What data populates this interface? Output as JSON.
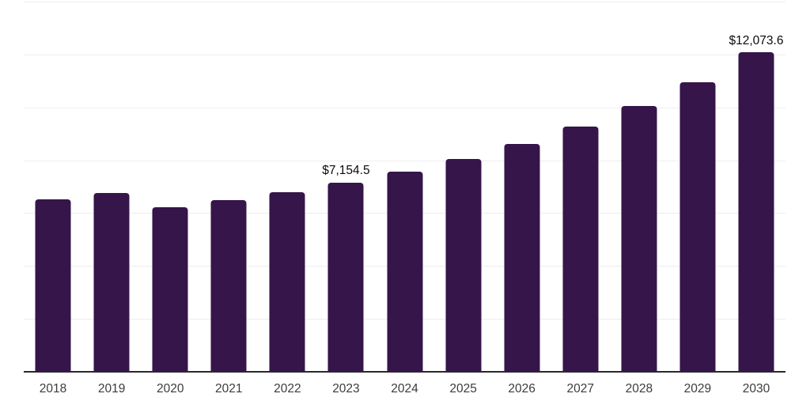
{
  "chart_data": {
    "type": "bar",
    "title": "",
    "xlabel": "",
    "ylabel": "",
    "categories": [
      "2018",
      "2019",
      "2020",
      "2021",
      "2022",
      "2023",
      "2024",
      "2025",
      "2026",
      "2027",
      "2028",
      "2029",
      "2030"
    ],
    "values": [
      6530,
      6760,
      6230,
      6480,
      6790,
      7154.5,
      7560,
      8060,
      8630,
      9270,
      10050,
      10960,
      12073.6
    ],
    "data_labels": {
      "2023": "$7,154.5",
      "2030": "$12,073.6"
    },
    "ylim": [
      0,
      14000
    ],
    "gridline_step": 2000,
    "grid": "horizontal",
    "legend_position": "none",
    "bar_color": "#35154A",
    "axis_line_color": "#28282d",
    "gridline_color": "#ededf0",
    "tick_label_color": "#3c3c3c",
    "data_label_color": "#0b0b0b"
  }
}
